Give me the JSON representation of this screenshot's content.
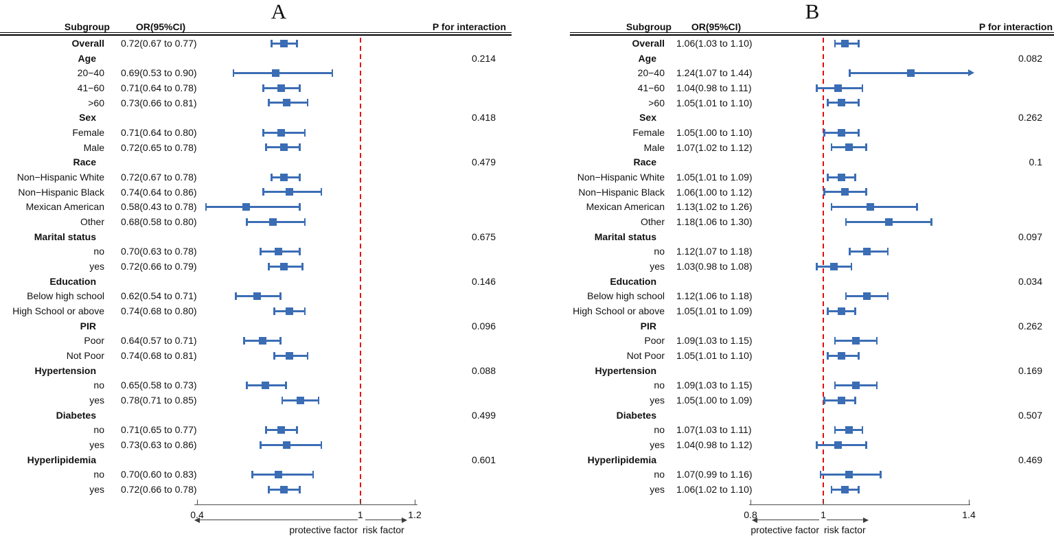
{
  "chart_data": [
    {
      "type": "scatter",
      "subtype": "forest-plot",
      "title": "A",
      "columns": {
        "subgroup": "Subgroup",
        "or": "OR(95%CI)",
        "p": "P for interaction"
      },
      "axis": {
        "min": 0.4,
        "max": 1.2,
        "tick_values": [
          0.4,
          1,
          1.2
        ],
        "tick_labels": [
          "0.4",
          "1",
          "1.2"
        ],
        "reference_line": 1
      },
      "annotations": {
        "left_arrow": "protective factor",
        "right_arrow": "risk factor"
      },
      "colors": {
        "marker": "#3b6db5",
        "reference_line": "#e90a0a",
        "axis": "#4d4d4d"
      },
      "rows": [
        {
          "label": "Overall",
          "bold": true,
          "or": "0.72(0.67 to 0.77)",
          "est": 0.72,
          "lo": 0.67,
          "hi": 0.77
        },
        {
          "label": "Age",
          "bold": true,
          "p": "0.214"
        },
        {
          "label": "20−40",
          "or": "0.69(0.53 to 0.90)",
          "est": 0.69,
          "lo": 0.53,
          "hi": 0.9
        },
        {
          "label": "41−60",
          "or": "0.71(0.64 to 0.78)",
          "est": 0.71,
          "lo": 0.64,
          "hi": 0.78
        },
        {
          "label": ">60",
          "or": "0.73(0.66 to 0.81)",
          "est": 0.73,
          "lo": 0.66,
          "hi": 0.81
        },
        {
          "label": "Sex",
          "bold": true,
          "p": "0.418"
        },
        {
          "label": "Female",
          "or": "0.71(0.64 to 0.80)",
          "est": 0.71,
          "lo": 0.64,
          "hi": 0.8
        },
        {
          "label": "Male",
          "or": "0.72(0.65 to 0.78)",
          "est": 0.72,
          "lo": 0.65,
          "hi": 0.78
        },
        {
          "label": "Race",
          "bold": true,
          "p": "0.479"
        },
        {
          "label": "Non−Hispanic White",
          "or": "0.72(0.67 to 0.78)",
          "est": 0.72,
          "lo": 0.67,
          "hi": 0.78
        },
        {
          "label": "Non−Hispanic Black",
          "or": "0.74(0.64 to 0.86)",
          "est": 0.74,
          "lo": 0.64,
          "hi": 0.86
        },
        {
          "label": "Mexican American",
          "or": "0.58(0.43 to 0.78)",
          "est": 0.58,
          "lo": 0.43,
          "hi": 0.78
        },
        {
          "label": "Other",
          "or": "0.68(0.58 to 0.80)",
          "est": 0.68,
          "lo": 0.58,
          "hi": 0.8
        },
        {
          "label": "Marital status",
          "bold": true,
          "p": "0.675"
        },
        {
          "label": "no",
          "or": "0.70(0.63 to 0.78)",
          "est": 0.7,
          "lo": 0.63,
          "hi": 0.78
        },
        {
          "label": "yes",
          "or": "0.72(0.66 to 0.79)",
          "est": 0.72,
          "lo": 0.66,
          "hi": 0.79
        },
        {
          "label": "Education",
          "bold": true,
          "p": "0.146"
        },
        {
          "label": "Below high school",
          "or": "0.62(0.54 to 0.71)",
          "est": 0.62,
          "lo": 0.54,
          "hi": 0.71
        },
        {
          "label": "High School or above",
          "or": "0.74(0.68 to 0.80)",
          "est": 0.74,
          "lo": 0.68,
          "hi": 0.8
        },
        {
          "label": "PIR",
          "bold": true,
          "p": "0.096"
        },
        {
          "label": "Poor",
          "or": "0.64(0.57 to 0.71)",
          "est": 0.64,
          "lo": 0.57,
          "hi": 0.71
        },
        {
          "label": "Not Poor",
          "or": "0.74(0.68 to 0.81)",
          "est": 0.74,
          "lo": 0.68,
          "hi": 0.81
        },
        {
          "label": "Hypertension",
          "bold": true,
          "p": "0.088"
        },
        {
          "label": "no",
          "or": "0.65(0.58 to 0.73)",
          "est": 0.65,
          "lo": 0.58,
          "hi": 0.73
        },
        {
          "label": "yes",
          "or": "0.78(0.71 to 0.85)",
          "est": 0.78,
          "lo": 0.71,
          "hi": 0.85
        },
        {
          "label": "Diabetes",
          "bold": true,
          "p": "0.499"
        },
        {
          "label": "no",
          "or": "0.71(0.65 to 0.77)",
          "est": 0.71,
          "lo": 0.65,
          "hi": 0.77
        },
        {
          "label": "yes",
          "or": "0.73(0.63 to 0.86)",
          "est": 0.73,
          "lo": 0.63,
          "hi": 0.86
        },
        {
          "label": "Hyperlipidemia",
          "bold": true,
          "p": "0.601"
        },
        {
          "label": "no",
          "or": "0.70(0.60 to 0.83)",
          "est": 0.7,
          "lo": 0.6,
          "hi": 0.83
        },
        {
          "label": "yes",
          "or": "0.72(0.66 to 0.78)",
          "est": 0.72,
          "lo": 0.66,
          "hi": 0.78
        }
      ]
    },
    {
      "type": "scatter",
      "subtype": "forest-plot",
      "title": "B",
      "columns": {
        "subgroup": "Subgroup",
        "or": "OR(95%CI)",
        "p": "P for interaction"
      },
      "axis": {
        "min": 0.8,
        "max": 1.4,
        "tick_values": [
          0.8,
          1,
          1.4
        ],
        "tick_labels": [
          "0.8",
          "1",
          "1.4"
        ],
        "reference_line": 1
      },
      "annotations": {
        "left_arrow": "protective factor",
        "right_arrow": "risk factor"
      },
      "colors": {
        "marker": "#3b6db5",
        "reference_line": "#e90a0a",
        "axis": "#4d4d4d"
      },
      "rows": [
        {
          "label": "Overall",
          "bold": true,
          "or": "1.06(1.03 to 1.10)",
          "est": 1.06,
          "lo": 1.03,
          "hi": 1.1
        },
        {
          "label": "Age",
          "bold": true,
          "p": "0.082"
        },
        {
          "label": "20−40",
          "or": "1.24(1.07 to 1.44)",
          "est": 1.24,
          "lo": 1.07,
          "hi": 1.44,
          "hi_clipped_arrow": true
        },
        {
          "label": "41−60",
          "or": "1.04(0.98 to 1.11)",
          "est": 1.04,
          "lo": 0.98,
          "hi": 1.11
        },
        {
          "label": ">60",
          "or": "1.05(1.01 to 1.10)",
          "est": 1.05,
          "lo": 1.01,
          "hi": 1.1
        },
        {
          "label": "Sex",
          "bold": true,
          "p": "0.262"
        },
        {
          "label": "Female",
          "or": "1.05(1.00 to 1.10)",
          "est": 1.05,
          "lo": 1.0,
          "hi": 1.1
        },
        {
          "label": "Male",
          "or": "1.07(1.02 to 1.12)",
          "est": 1.07,
          "lo": 1.02,
          "hi": 1.12
        },
        {
          "label": "Race",
          "bold": true,
          "p": "0.1"
        },
        {
          "label": "Non−Hispanic White",
          "or": "1.05(1.01 to 1.09)",
          "est": 1.05,
          "lo": 1.01,
          "hi": 1.09
        },
        {
          "label": "Non−Hispanic Black",
          "or": "1.06(1.00 to 1.12)",
          "est": 1.06,
          "lo": 1.0,
          "hi": 1.12
        },
        {
          "label": "Mexican American",
          "or": "1.13(1.02 to 1.26)",
          "est": 1.13,
          "lo": 1.02,
          "hi": 1.26
        },
        {
          "label": "Other",
          "or": "1.18(1.06 to 1.30)",
          "est": 1.18,
          "lo": 1.06,
          "hi": 1.3
        },
        {
          "label": "Marital status",
          "bold": true,
          "p": "0.097"
        },
        {
          "label": "no",
          "or": "1.12(1.07 to 1.18)",
          "est": 1.12,
          "lo": 1.07,
          "hi": 1.18
        },
        {
          "label": "yes",
          "or": "1.03(0.98 to 1.08)",
          "est": 1.03,
          "lo": 0.98,
          "hi": 1.08
        },
        {
          "label": "Education",
          "bold": true,
          "p": "0.034"
        },
        {
          "label": "Below high school",
          "or": "1.12(1.06 to 1.18)",
          "est": 1.12,
          "lo": 1.06,
          "hi": 1.18
        },
        {
          "label": "High School or above",
          "or": "1.05(1.01 to 1.09)",
          "est": 1.05,
          "lo": 1.01,
          "hi": 1.09
        },
        {
          "label": "PIR",
          "bold": true,
          "p": "0.262"
        },
        {
          "label": "Poor",
          "or": "1.09(1.03 to 1.15)",
          "est": 1.09,
          "lo": 1.03,
          "hi": 1.15
        },
        {
          "label": "Not Poor",
          "or": "1.05(1.01 to 1.10)",
          "est": 1.05,
          "lo": 1.01,
          "hi": 1.1
        },
        {
          "label": "Hypertension",
          "bold": true,
          "p": "0.169"
        },
        {
          "label": "no",
          "or": "1.09(1.03 to 1.15)",
          "est": 1.09,
          "lo": 1.03,
          "hi": 1.15
        },
        {
          "label": "yes",
          "or": "1.05(1.00 to 1.09)",
          "est": 1.05,
          "lo": 1.0,
          "hi": 1.09
        },
        {
          "label": "Diabetes",
          "bold": true,
          "p": "0.507"
        },
        {
          "label": "no",
          "or": "1.07(1.03 to 1.11)",
          "est": 1.07,
          "lo": 1.03,
          "hi": 1.11
        },
        {
          "label": "yes",
          "or": "1.04(0.98 to 1.12)",
          "est": 1.04,
          "lo": 0.98,
          "hi": 1.12
        },
        {
          "label": "Hyperlipidemia",
          "bold": true,
          "p": "0.469"
        },
        {
          "label": "no",
          "or": "1.07(0.99 to 1.16)",
          "est": 1.07,
          "lo": 0.99,
          "hi": 1.16
        },
        {
          "label": "yes",
          "or": "1.06(1.02 to 1.10)",
          "est": 1.06,
          "lo": 1.02,
          "hi": 1.1
        }
      ]
    }
  ]
}
